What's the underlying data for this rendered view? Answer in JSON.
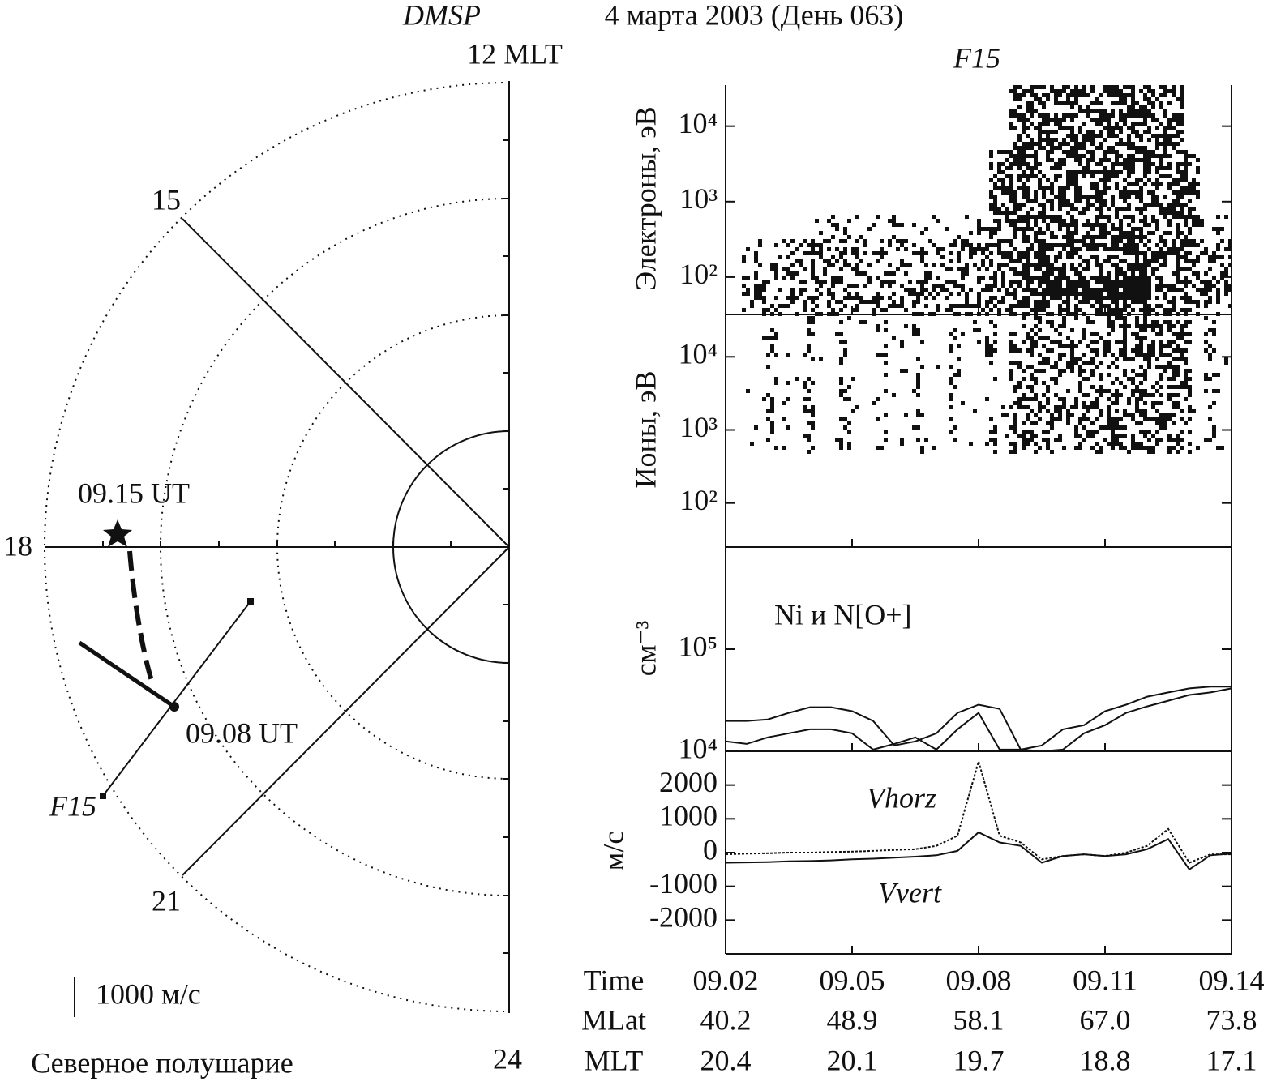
{
  "header": {
    "title": "DMSP",
    "date": "4 марта 2003 (День 063)"
  },
  "chart_data": [
    {
      "type": "polar",
      "title": "Северное полушарие",
      "mlt_labels": [
        "12 MLT",
        "15",
        "18",
        "21",
        "24"
      ],
      "annotations": [
        "09.15 UT",
        "09.08 UT",
        "F15"
      ],
      "scale_label": "1000 м/с"
    },
    {
      "type": "spectrogram",
      "title": "F15",
      "ylabel": "Электроны, эВ",
      "log_y": true,
      "ylim": [
        32,
        35000
      ],
      "yticks": [
        {
          "value": 100,
          "label": "10²"
        },
        {
          "value": 1000,
          "label": "10³"
        },
        {
          "value": 10000,
          "label": "10⁴"
        }
      ]
    },
    {
      "type": "spectrogram",
      "ylabel": "Ионы, эВ",
      "log_y": true,
      "ylim": [
        25,
        38000
      ],
      "yticks": [
        {
          "value": 100,
          "label": "10²"
        },
        {
          "value": 1000,
          "label": "10³"
        },
        {
          "value": 10000,
          "label": "10⁴"
        }
      ]
    },
    {
      "type": "line",
      "ylabel": "см⁻³",
      "annotation": "Ni и N[O+]",
      "log_y": true,
      "ylim": [
        10000,
        1000000
      ],
      "yticks": [
        {
          "value": 10000,
          "label": "10⁴"
        },
        {
          "value": 100000,
          "label": "10⁵"
        }
      ],
      "x": [
        542,
        542.5,
        543,
        543.5,
        544,
        544.5,
        545,
        545.5,
        546,
        546.5,
        547,
        547.5,
        548,
        548.5,
        549,
        549.5,
        550,
        550.5,
        551,
        551.5,
        552,
        552.5,
        553,
        553.5,
        554
      ],
      "series": [
        {
          "color": "#111",
          "values": [
            19800,
            19800,
            20500,
            23800,
            27000,
            27000,
            24700,
            19800,
            11400,
            12500,
            15000,
            23800,
            28600,
            26000,
            10400,
            10000,
            10400,
            15000,
            18000,
            23800,
            27500,
            31300,
            35600,
            37700,
            41300
          ]
        },
        {
          "color": "#111",
          "values": [
            12500,
            11800,
            13700,
            15000,
            16400,
            16400,
            15000,
            10400,
            11800,
            13700,
            10400,
            16400,
            23800,
            10400,
            10400,
            11400,
            16400,
            18000,
            24700,
            28600,
            34300,
            37700,
            41300,
            42900,
            42900
          ]
        }
      ]
    },
    {
      "type": "line",
      "ylabel": "м/с",
      "ylim": [
        -3000,
        3000
      ],
      "yticks": [
        -2000,
        -1000,
        0,
        1000,
        2000
      ],
      "xlim": [
        542,
        554
      ],
      "xticks": [
        {
          "value": 542,
          "label": "09.02"
        },
        {
          "value": 545,
          "label": "09.05"
        },
        {
          "value": 548,
          "label": "09.08"
        },
        {
          "value": 551,
          "label": "09.11"
        },
        {
          "value": 554,
          "label": "09.14"
        }
      ],
      "x": [
        542,
        542.5,
        543,
        543.5,
        544,
        544.5,
        545,
        545.5,
        546,
        546.5,
        547,
        547.5,
        548,
        548.5,
        549,
        549.5,
        550,
        550.5,
        551,
        551.5,
        552,
        552.5,
        553,
        553.5,
        554
      ],
      "series": [
        {
          "name": "Vhorz",
          "color": "#111",
          "values": [
            -50,
            -30,
            -20,
            0,
            0,
            20,
            30,
            50,
            80,
            100,
            200,
            500,
            2700,
            500,
            300,
            -200,
            -100,
            -50,
            -100,
            0,
            200,
            700,
            -300,
            -50,
            -50
          ]
        },
        {
          "name": "Vvert",
          "color": "#111",
          "values": [
            -300,
            -290,
            -280,
            -260,
            -250,
            -230,
            -200,
            -180,
            -150,
            -120,
            -80,
            50,
            600,
            300,
            200,
            -300,
            -100,
            -50,
            -100,
            -50,
            100,
            400,
            -500,
            -80,
            -30
          ]
        }
      ],
      "table": {
        "row_labels": [
          "Time",
          "MLat",
          "MLT"
        ],
        "rows": [
          [
            "40.2",
            "48.9",
            "58.1",
            "67.0",
            "73.8"
          ],
          [
            "20.4",
            "20.1",
            "19.7",
            "18.8",
            "17.1"
          ]
        ]
      }
    }
  ]
}
